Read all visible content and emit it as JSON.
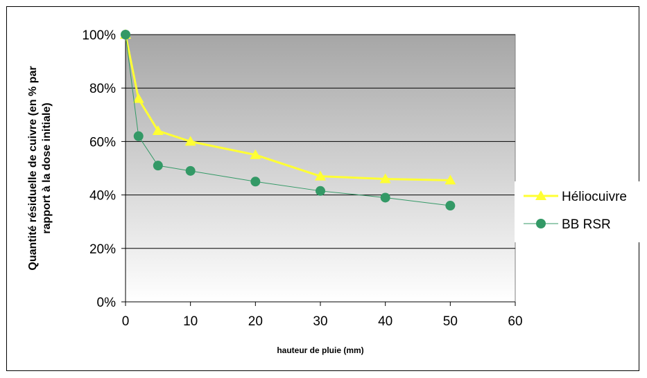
{
  "chart_data": {
    "type": "line",
    "xlabel": "hauteur de pluie (mm)",
    "ylabel_lines": [
      "Quantité résiduelle de cuivre (en % par",
      "rapport à la dose initiale)"
    ],
    "xlim": [
      0,
      60
    ],
    "ylim": [
      0,
      100
    ],
    "x_ticks": [
      "0",
      "10",
      "20",
      "30",
      "40",
      "50",
      "60"
    ],
    "y_ticks": [
      "0%",
      "20%",
      "40%",
      "60%",
      "80%",
      "100%"
    ],
    "legend_position": "right",
    "grid": true,
    "series": [
      {
        "name": "Héliocuivre",
        "color": "#FFFF33",
        "marker": "triangle",
        "x": [
          0,
          2,
          5,
          10,
          20,
          30,
          40,
          50
        ],
        "y": [
          100,
          76,
          64,
          60,
          55,
          47,
          46,
          45.5
        ]
      },
      {
        "name": "BB RSR",
        "color": "#339966",
        "marker": "circle",
        "x": [
          0,
          2,
          5,
          10,
          20,
          30,
          40,
          50
        ],
        "y": [
          100,
          62,
          51,
          49,
          45,
          41.5,
          39,
          36
        ]
      }
    ]
  }
}
